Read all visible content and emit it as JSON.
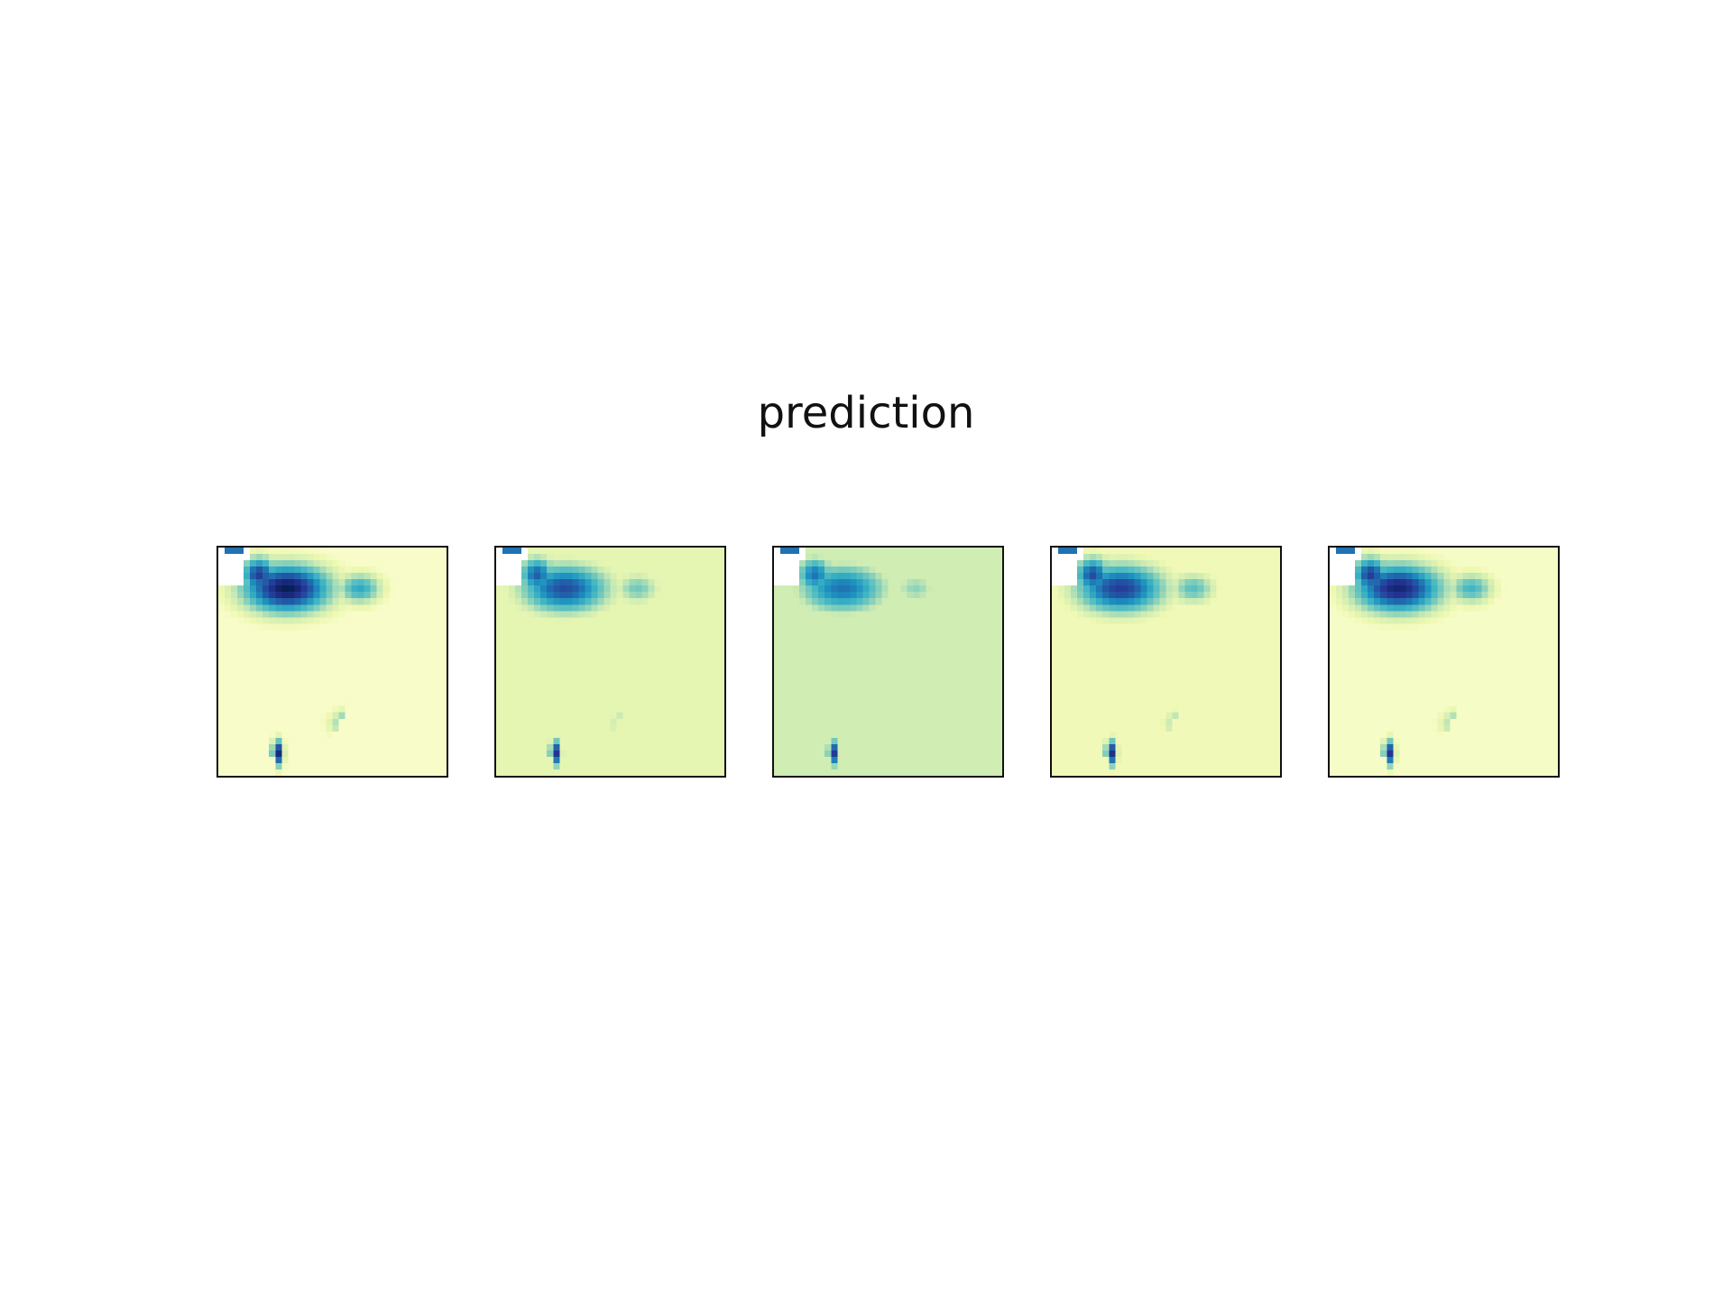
{
  "chart_data": {
    "type": "heatmap",
    "title": "prediction",
    "colormap": "YlGnBu",
    "panels": [
      {
        "id": 1,
        "background_level": 0.05,
        "blobs": [
          {
            "name": "north-core",
            "intensity": 1.0
          },
          {
            "name": "north-west",
            "intensity": 0.85
          },
          {
            "name": "east-patch",
            "intensity": 0.55
          },
          {
            "name": "south-patch",
            "intensity": 0.6
          },
          {
            "name": "southwest-coast",
            "intensity": 0.95
          }
        ]
      },
      {
        "id": 2,
        "background_level": 0.15,
        "blobs": [
          {
            "name": "north-core",
            "intensity": 0.8
          },
          {
            "name": "north-west",
            "intensity": 0.75
          },
          {
            "name": "east-patch",
            "intensity": 0.4
          },
          {
            "name": "south-patch",
            "intensity": 0.45
          },
          {
            "name": "southwest-coast",
            "intensity": 0.9
          }
        ]
      },
      {
        "id": 3,
        "background_level": 0.22,
        "blobs": [
          {
            "name": "north-core",
            "intensity": 0.7
          },
          {
            "name": "north-west",
            "intensity": 0.7
          },
          {
            "name": "east-patch",
            "intensity": 0.35
          },
          {
            "name": "south-patch",
            "intensity": 0.4
          },
          {
            "name": "southwest-coast",
            "intensity": 0.88
          }
        ]
      },
      {
        "id": 4,
        "background_level": 0.1,
        "blobs": [
          {
            "name": "north-core",
            "intensity": 0.85
          },
          {
            "name": "north-west",
            "intensity": 0.8
          },
          {
            "name": "east-patch",
            "intensity": 0.45
          },
          {
            "name": "south-patch",
            "intensity": 0.5
          },
          {
            "name": "southwest-coast",
            "intensity": 0.92
          }
        ]
      },
      {
        "id": 5,
        "background_level": 0.06,
        "blobs": [
          {
            "name": "north-core",
            "intensity": 0.95
          },
          {
            "name": "north-west",
            "intensity": 0.85
          },
          {
            "name": "east-patch",
            "intensity": 0.5
          },
          {
            "name": "south-patch",
            "intensity": 0.55
          },
          {
            "name": "southwest-coast",
            "intensity": 0.9
          }
        ]
      }
    ]
  }
}
